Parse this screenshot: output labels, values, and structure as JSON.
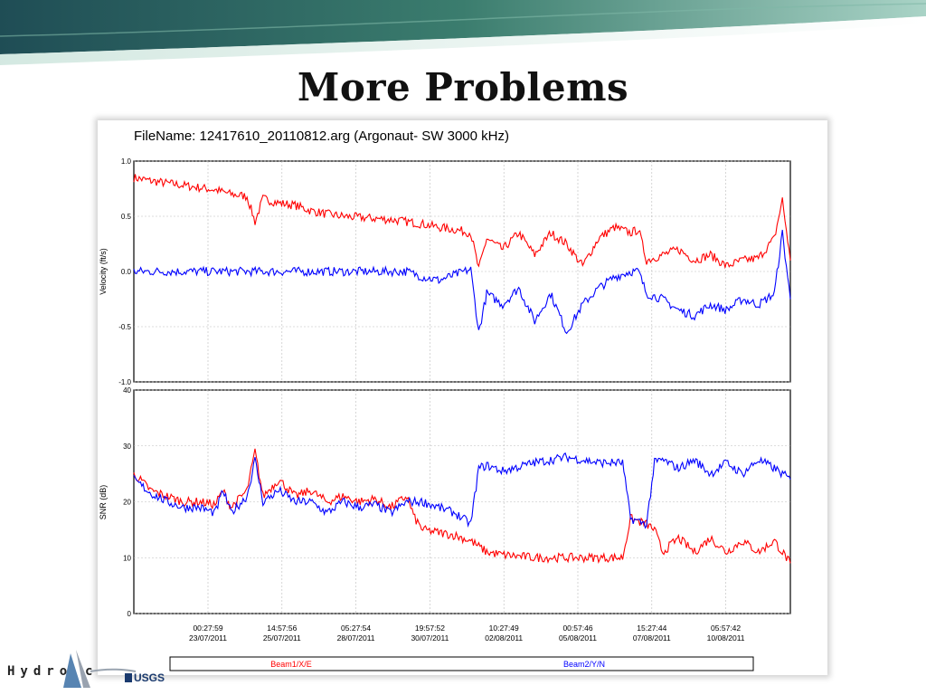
{
  "slide": {
    "title": "More Problems",
    "logo_text": "Hydro",
    "logo_trailing": "c",
    "usgs_text": "USGS"
  },
  "colors": {
    "beam1": "#ff0000",
    "beam2": "#0000ff",
    "banner": "#2f6b63"
  },
  "chart_data": [
    {
      "type": "line",
      "title": "FileName: 12417610_20110812.arg  (Argonaut- SW  3000 kHz)",
      "ylabel": "Velocity (ft/s)",
      "xlabel": "",
      "ylim": [
        -1.0,
        1.0
      ],
      "yticks": [
        "1.0",
        "0.5",
        "0.0",
        "-0.5",
        "-1.0"
      ],
      "grid": true,
      "series": [
        {
          "name": "Beam1/X/E",
          "color": "#ff0000",
          "points": [
            [
              "2011-07-22T11:00",
              0.85
            ],
            [
              "2011-07-23T00:00",
              0.82
            ],
            [
              "2011-07-23T12:00",
              0.8
            ],
            [
              "2011-07-24T00:00",
              0.78
            ],
            [
              "2011-07-24T12:00",
              0.76
            ],
            [
              "2011-07-25T00:00",
              0.74
            ],
            [
              "2011-07-25T12:00",
              0.7
            ],
            [
              "2011-07-26T00:00",
              0.68
            ],
            [
              "2011-07-26T06:00",
              0.45
            ],
            [
              "2011-07-26T12:00",
              0.66
            ],
            [
              "2011-07-27T00:00",
              0.62
            ],
            [
              "2011-07-27T12:00",
              0.6
            ],
            [
              "2011-07-28T00:00",
              0.55
            ],
            [
              "2011-07-28T12:00",
              0.52
            ],
            [
              "2011-07-29T00:00",
              0.5
            ],
            [
              "2011-07-29T12:00",
              0.49
            ],
            [
              "2011-07-30T00:00",
              0.48
            ],
            [
              "2011-07-30T12:00",
              0.47
            ],
            [
              "2011-07-31T00:00",
              0.45
            ],
            [
              "2011-07-31T12:00",
              0.43
            ],
            [
              "2011-08-01T00:00",
              0.4
            ],
            [
              "2011-08-01T12:00",
              0.38
            ],
            [
              "2011-08-02T00:00",
              0.35
            ],
            [
              "2011-08-02T06:00",
              0.02
            ],
            [
              "2011-08-02T12:00",
              0.3
            ],
            [
              "2011-08-03T00:00",
              0.2
            ],
            [
              "2011-08-03T12:00",
              0.35
            ],
            [
              "2011-08-04T00:00",
              0.15
            ],
            [
              "2011-08-04T12:00",
              0.35
            ],
            [
              "2011-08-05T00:00",
              0.25
            ],
            [
              "2011-08-05T12:00",
              0.05
            ],
            [
              "2011-08-06T00:00",
              0.3
            ],
            [
              "2011-08-06T12:00",
              0.4
            ],
            [
              "2011-08-07T00:00",
              0.35
            ],
            [
              "2011-08-07T06:00",
              0.38
            ],
            [
              "2011-08-07T12:00",
              0.1
            ],
            [
              "2011-08-08T00:00",
              0.15
            ],
            [
              "2011-08-08T12:00",
              0.2
            ],
            [
              "2011-08-09T00:00",
              0.1
            ],
            [
              "2011-08-09T12:00",
              0.15
            ],
            [
              "2011-08-10T00:00",
              0.05
            ],
            [
              "2011-08-10T12:00",
              0.1
            ],
            [
              "2011-08-11T00:00",
              0.12
            ],
            [
              "2011-08-11T12:00",
              0.3
            ],
            [
              "2011-08-11T18:00",
              0.65
            ],
            [
              "2011-08-12T00:00",
              0.1
            ]
          ]
        },
        {
          "name": "Beam2/Y/N",
          "color": "#0000ff",
          "points": [
            [
              "2011-07-22T11:00",
              0.0
            ],
            [
              "2011-07-24T00:00",
              0.0
            ],
            [
              "2011-07-26T00:00",
              0.0
            ],
            [
              "2011-07-28T00:00",
              0.0
            ],
            [
              "2011-07-30T00:00",
              0.0
            ],
            [
              "2011-07-31T00:00",
              0.0
            ],
            [
              "2011-07-31T12:00",
              -0.05
            ],
            [
              "2011-08-01T00:00",
              -0.08
            ],
            [
              "2011-08-01T12:00",
              -0.03
            ],
            [
              "2011-08-02T00:00",
              0.02
            ],
            [
              "2011-08-02T06:00",
              -0.55
            ],
            [
              "2011-08-02T12:00",
              -0.2
            ],
            [
              "2011-08-03T00:00",
              -0.3
            ],
            [
              "2011-08-03T12:00",
              -0.15
            ],
            [
              "2011-08-04T00:00",
              -0.45
            ],
            [
              "2011-08-04T12:00",
              -0.2
            ],
            [
              "2011-08-05T00:00",
              -0.55
            ],
            [
              "2011-08-05T12:00",
              -0.3
            ],
            [
              "2011-08-06T00:00",
              -0.15
            ],
            [
              "2011-08-06T12:00",
              -0.05
            ],
            [
              "2011-08-07T00:00",
              0.0
            ],
            [
              "2011-08-07T06:00",
              0.0
            ],
            [
              "2011-08-07T12:00",
              -0.2
            ],
            [
              "2011-08-08T00:00",
              -0.25
            ],
            [
              "2011-08-08T12:00",
              -0.35
            ],
            [
              "2011-08-09T00:00",
              -0.4
            ],
            [
              "2011-08-09T12:00",
              -0.3
            ],
            [
              "2011-08-10T00:00",
              -0.35
            ],
            [
              "2011-08-10T12:00",
              -0.25
            ],
            [
              "2011-08-11T00:00",
              -0.3
            ],
            [
              "2011-08-11T12:00",
              -0.2
            ],
            [
              "2011-08-11T18:00",
              0.35
            ],
            [
              "2011-08-12T00:00",
              -0.25
            ]
          ]
        }
      ]
    },
    {
      "type": "line",
      "title": "",
      "ylabel": "SNR (dB)",
      "xlabel": "",
      "ylim": [
        0,
        40
      ],
      "yticks": [
        "40",
        "30",
        "20",
        "10",
        "0"
      ],
      "grid": true,
      "xticks": [
        [
          "00:27:59",
          "23/07/2011"
        ],
        [
          "14:57:56",
          "25/07/2011"
        ],
        [
          "05:27:54",
          "28/07/2011"
        ],
        [
          "19:57:52",
          "30/07/2011"
        ],
        [
          "10:27:49",
          "02/08/2011"
        ],
        [
          "00:57:46",
          "05/08/2011"
        ],
        [
          "15:27:44",
          "07/08/2011"
        ],
        [
          "05:57:42",
          "10/08/2011"
        ]
      ],
      "series": [
        {
          "name": "Beam1/X/E",
          "color": "#ff0000",
          "points": [
            [
              "2011-07-22T11:00",
              25.0
            ],
            [
              "2011-07-23T00:00",
              22.0
            ],
            [
              "2011-07-23T12:00",
              21.0
            ],
            [
              "2011-07-24T00:00",
              20.0
            ],
            [
              "2011-07-24T12:00",
              20.0
            ],
            [
              "2011-07-25T00:00",
              19.5
            ],
            [
              "2011-07-25T06:00",
              22.0
            ],
            [
              "2011-07-25T12:00",
              19.0
            ],
            [
              "2011-07-26T00:00",
              22.0
            ],
            [
              "2011-07-26T06:00",
              29.0
            ],
            [
              "2011-07-26T12:00",
              21.0
            ],
            [
              "2011-07-27T00:00",
              24.0
            ],
            [
              "2011-07-27T12:00",
              21.0
            ],
            [
              "2011-07-28T00:00",
              22.0
            ],
            [
              "2011-07-28T12:00",
              20.0
            ],
            [
              "2011-07-29T00:00",
              21.0
            ],
            [
              "2011-07-29T12:00",
              20.0
            ],
            [
              "2011-07-30T00:00",
              20.5
            ],
            [
              "2011-07-30T12:00",
              19.0
            ],
            [
              "2011-07-31T00:00",
              21.0
            ],
            [
              "2011-07-31T06:00",
              17.0
            ],
            [
              "2011-07-31T12:00",
              15.0
            ],
            [
              "2011-08-01T00:00",
              14.5
            ],
            [
              "2011-08-01T12:00",
              14.0
            ],
            [
              "2011-08-02T00:00",
              13.0
            ],
            [
              "2011-08-02T12:00",
              11.0
            ],
            [
              "2011-08-03T00:00",
              10.5
            ],
            [
              "2011-08-04T00:00",
              10.0
            ],
            [
              "2011-08-05T00:00",
              10.0
            ],
            [
              "2011-08-06T00:00",
              10.0
            ],
            [
              "2011-08-06T18:00",
              10.0
            ],
            [
              "2011-08-07T00:00",
              17.0
            ],
            [
              "2011-08-07T12:00",
              16.0
            ],
            [
              "2011-08-07T18:00",
              15.0
            ],
            [
              "2011-08-08T00:00",
              11.0
            ],
            [
              "2011-08-08T12:00",
              13.5
            ],
            [
              "2011-08-09T00:00",
              11.0
            ],
            [
              "2011-08-09T12:00",
              13.5
            ],
            [
              "2011-08-10T00:00",
              11.0
            ],
            [
              "2011-08-10T12:00",
              13.0
            ],
            [
              "2011-08-11T00:00",
              11.0
            ],
            [
              "2011-08-11T12:00",
              13.0
            ],
            [
              "2011-08-12T00:00",
              9.0
            ]
          ]
        },
        {
          "name": "Beam2/Y/N",
          "color": "#0000ff",
          "points": [
            [
              "2011-07-22T11:00",
              24.0
            ],
            [
              "2011-07-23T00:00",
              21.5
            ],
            [
              "2011-07-23T12:00",
              20.0
            ],
            [
              "2011-07-24T00:00",
              19.0
            ],
            [
              "2011-07-24T12:00",
              19.0
            ],
            [
              "2011-07-25T00:00",
              18.0
            ],
            [
              "2011-07-25T06:00",
              22.0
            ],
            [
              "2011-07-25T12:00",
              18.0
            ],
            [
              "2011-07-26T00:00",
              21.0
            ],
            [
              "2011-07-26T06:00",
              27.5
            ],
            [
              "2011-07-26T12:00",
              20.0
            ],
            [
              "2011-07-27T00:00",
              22.0
            ],
            [
              "2011-07-27T12:00",
              20.0
            ],
            [
              "2011-07-28T00:00",
              20.0
            ],
            [
              "2011-07-28T12:00",
              18.0
            ],
            [
              "2011-07-29T00:00",
              20.0
            ],
            [
              "2011-07-29T12:00",
              19.0
            ],
            [
              "2011-07-30T00:00",
              19.5
            ],
            [
              "2011-07-30T12:00",
              18.0
            ],
            [
              "2011-07-31T00:00",
              20.0
            ],
            [
              "2011-07-31T12:00",
              20.0
            ],
            [
              "2011-08-01T00:00",
              19.0
            ],
            [
              "2011-08-01T12:00",
              18.0
            ],
            [
              "2011-08-02T00:00",
              16.0
            ],
            [
              "2011-08-02T06:00",
              26.0
            ],
            [
              "2011-08-02T12:00",
              26.5
            ],
            [
              "2011-08-03T00:00",
              25.5
            ],
            [
              "2011-08-04T00:00",
              27.0
            ],
            [
              "2011-08-05T00:00",
              28.0
            ],
            [
              "2011-08-06T00:00",
              27.0
            ],
            [
              "2011-08-06T18:00",
              27.0
            ],
            [
              "2011-08-07T00:00",
              17.0
            ],
            [
              "2011-08-07T12:00",
              16.0
            ],
            [
              "2011-08-07T18:00",
              27.0
            ],
            [
              "2011-08-08T00:00",
              27.5
            ],
            [
              "2011-08-08T12:00",
              26.0
            ],
            [
              "2011-08-09T00:00",
              27.5
            ],
            [
              "2011-08-09T12:00",
              25.0
            ],
            [
              "2011-08-10T00:00",
              27.0
            ],
            [
              "2011-08-10T12:00",
              25.0
            ],
            [
              "2011-08-11T00:00",
              27.5
            ],
            [
              "2011-08-11T12:00",
              26.0
            ],
            [
              "2011-08-12T00:00",
              24.0
            ]
          ]
        }
      ]
    }
  ],
  "legend": {
    "position": "bottom",
    "items": [
      {
        "label": "Beam1/X/E",
        "color": "#ff0000"
      },
      {
        "label": "Beam2/Y/N",
        "color": "#0000ff"
      }
    ]
  }
}
